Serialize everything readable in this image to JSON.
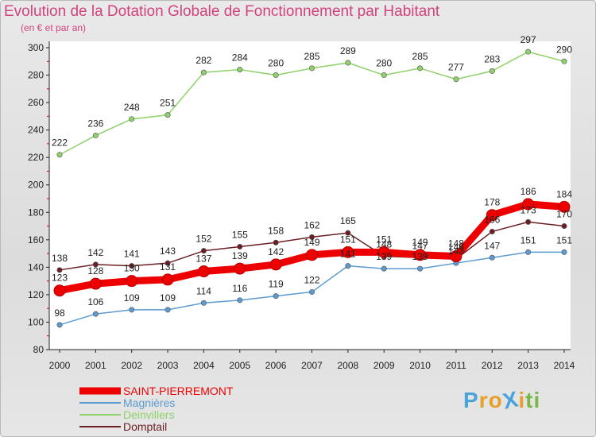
{
  "title": "Evolution de la Dotation Globale de Fonctionnement par Habitant",
  "subtitle": "(en € et par an)",
  "logo": {
    "text": "ProXiti",
    "letters": [
      "P",
      "r",
      "o",
      "X",
      "i",
      "t",
      "i"
    ],
    "colors": [
      "#4aa3d9",
      "#e6a02a",
      "#e6a02a",
      "#4aa3d9",
      "#e6a02a",
      "#7ab648",
      "#7ab648"
    ]
  },
  "chart_data": {
    "type": "line",
    "title": "Evolution de la Dotation Globale de Fonctionnement par Habitant",
    "subtitle": "(en € et par an)",
    "xlabel": "",
    "ylabel": "",
    "x": [
      "2000",
      "2001",
      "2002",
      "2003",
      "2004",
      "2005",
      "2006",
      "2007",
      "2008",
      "2009",
      "2010",
      "2011",
      "2012",
      "2013",
      "2014"
    ],
    "yticks": [
      80,
      100,
      120,
      140,
      160,
      180,
      200,
      220,
      240,
      260,
      280,
      300
    ],
    "ylim": [
      80,
      300
    ],
    "grid": false,
    "legend_position": "bottom-left",
    "series": [
      {
        "name": "SAINT-PIERREMONT",
        "color": "#ee0000",
        "bold": true,
        "values": [
          123,
          128,
          130,
          131,
          137,
          139,
          142,
          149,
          151,
          151,
          149,
          148,
          178,
          186,
          184
        ],
        "labels": [
          "123",
          "128",
          "130",
          "131",
          "137",
          "139",
          "142",
          "149",
          "151",
          "151",
          "149",
          "148",
          "178",
          "186",
          "184"
        ]
      },
      {
        "name": "Magnières",
        "color": "#5b9bd0",
        "bold": false,
        "values": [
          98,
          106,
          109,
          109,
          114,
          116,
          119,
          122,
          141,
          139,
          139,
          143,
          147,
          151,
          151
        ],
        "labels": [
          "98",
          "106",
          "109",
          "109",
          "114",
          "116",
          "119",
          "122",
          "141",
          "139",
          "139",
          "143",
          "147",
          "151",
          "151"
        ]
      },
      {
        "name": "Deinvillers",
        "color": "#8fd16a",
        "bold": false,
        "values": [
          222,
          236,
          248,
          251,
          282,
          284,
          280,
          285,
          289,
          280,
          285,
          277,
          283,
          297,
          290
        ],
        "labels": [
          "222",
          "236",
          "248",
          "251",
          "282",
          "284",
          "280",
          "285",
          "289",
          "280",
          "285",
          "277",
          "283",
          "297",
          "290"
        ]
      },
      {
        "name": "Domptail",
        "color": "#6b1f24",
        "bold": false,
        "values": [
          138,
          142,
          141,
          143,
          152,
          155,
          158,
          162,
          165,
          148,
          147,
          146,
          166,
          173,
          170
        ],
        "labels": [
          "138",
          "142",
          "141",
          "143",
          "152",
          "155",
          "158",
          "162",
          "165",
          "148",
          "147",
          "146",
          "166",
          "173",
          "170"
        ]
      }
    ]
  }
}
